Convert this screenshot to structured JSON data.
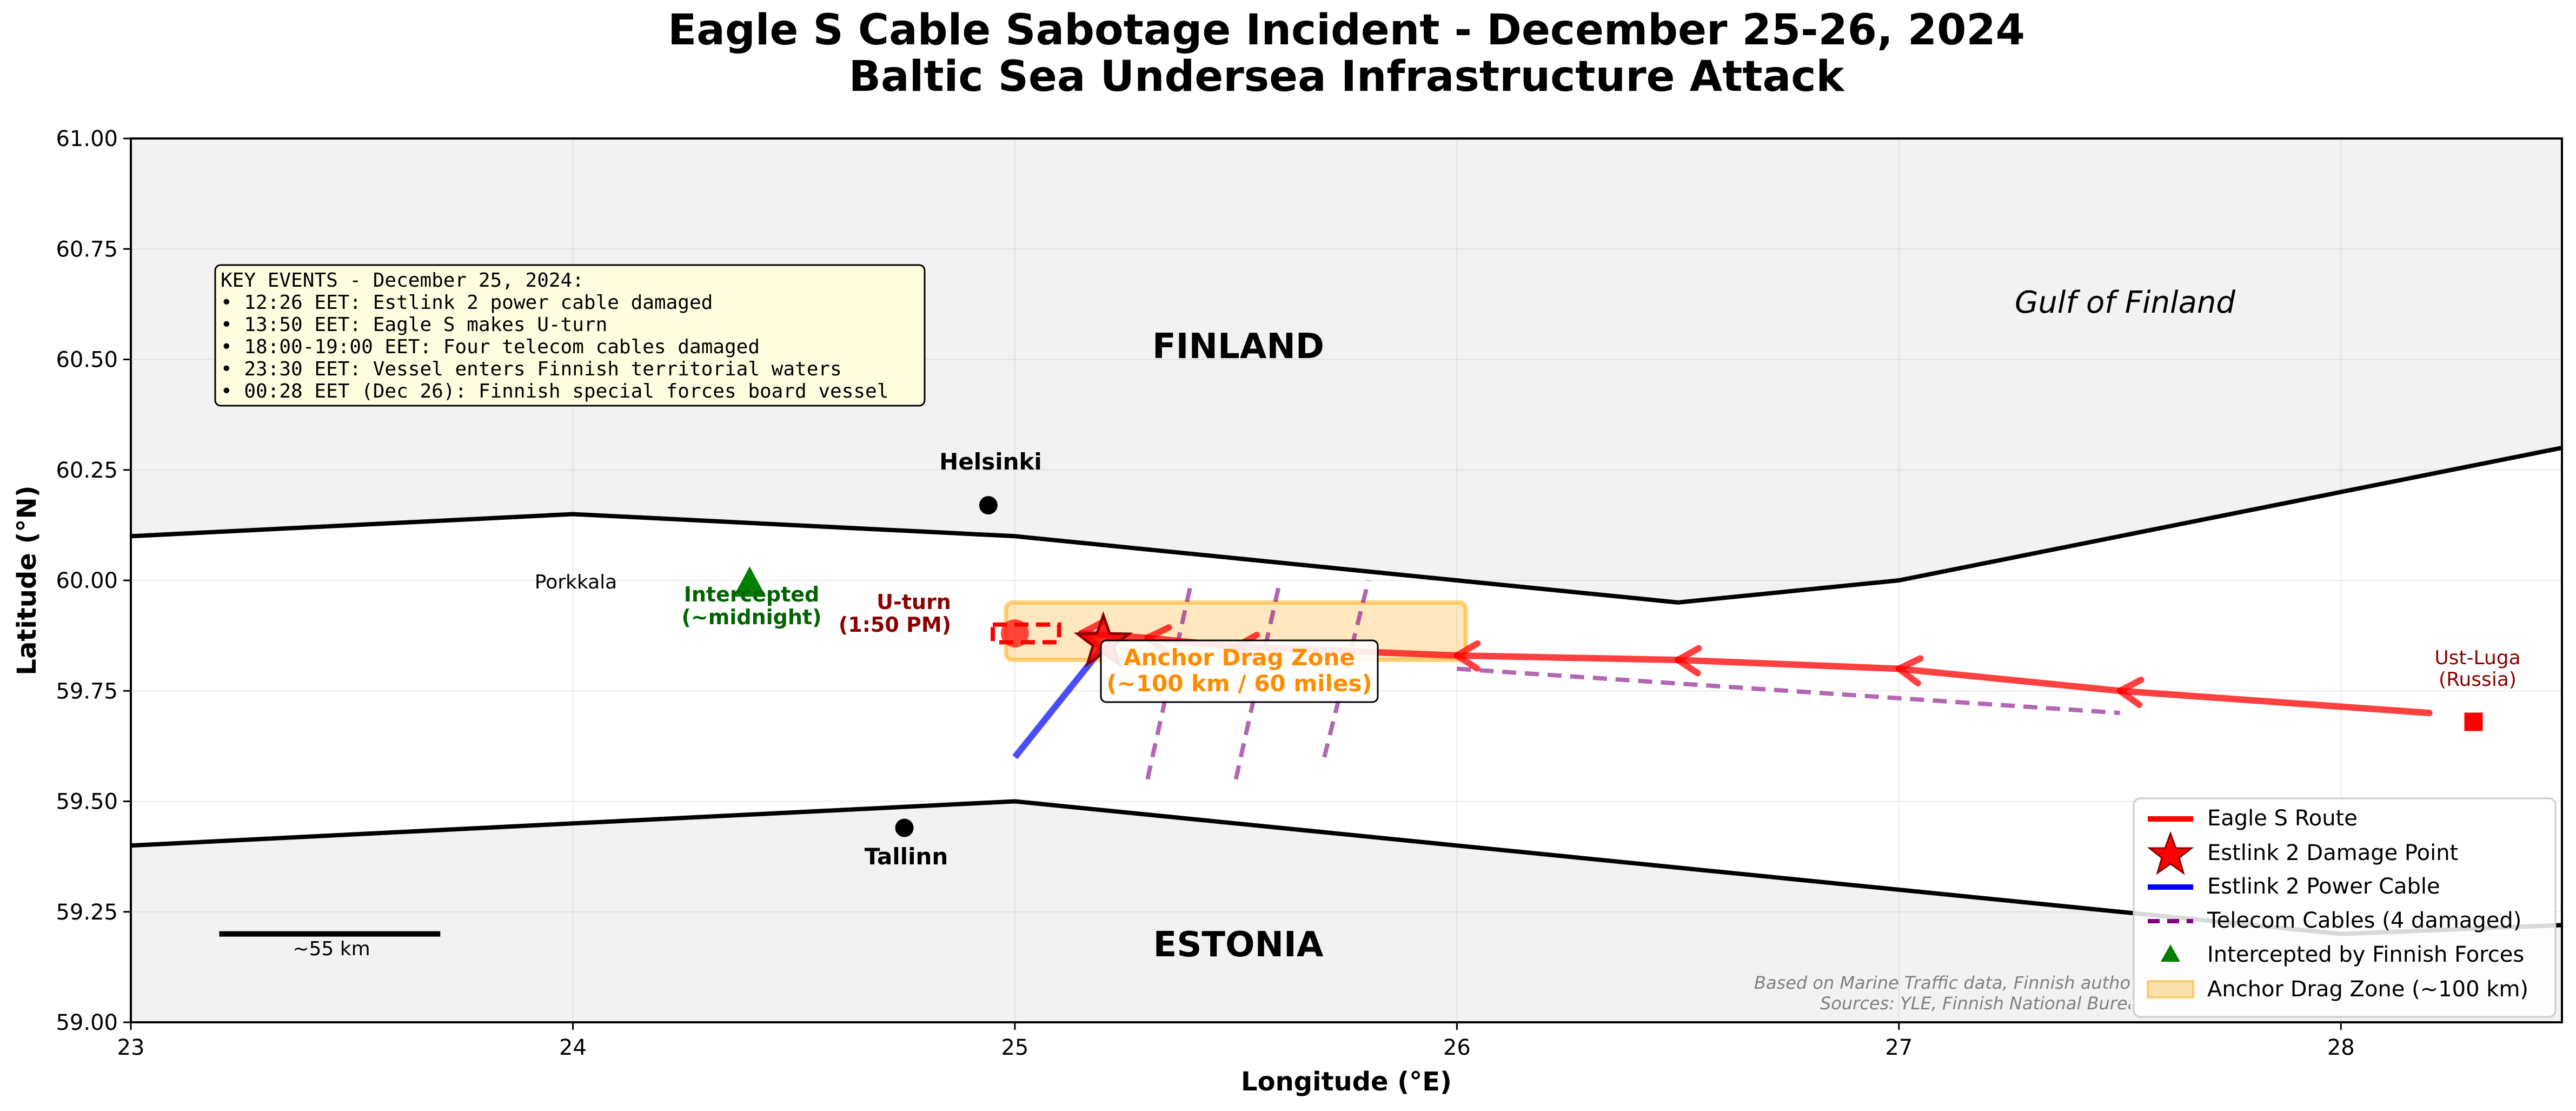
{
  "chart_data": {
    "type": "line",
    "title": "Eagle S Cable Sabotage Incident - December 25-26, 2024",
    "subtitle": "Baltic Sea Undersea Infrastructure Attack",
    "xlabel": "Longitude (°E)",
    "ylabel": "Latitude (°N)",
    "xlim": [
      23,
      28.5
    ],
    "ylim": [
      59.0,
      61.0
    ],
    "x_ticks": [
      "23",
      "24",
      "25",
      "26",
      "27",
      "28"
    ],
    "y_ticks": [
      "59.00",
      "59.25",
      "59.50",
      "59.75",
      "60.00",
      "60.25",
      "60.50",
      "60.75",
      "61.00"
    ],
    "grid": true,
    "legend_position": "lower-right",
    "colors": {
      "route": "#ff0000",
      "power_cable": "#0000ff",
      "telecom": "#800080",
      "intercept": "#006400",
      "drag_zone": "#ffa500",
      "land": "#f2f2f2",
      "damage_star": "#ff0000"
    },
    "coastlines": {
      "finland": [
        [
          23,
          60.1
        ],
        [
          24,
          60.15
        ],
        [
          25,
          60.1
        ],
        [
          26,
          60.0
        ],
        [
          26.5,
          59.95
        ],
        [
          27,
          60.0
        ],
        [
          28.5,
          60.3
        ]
      ],
      "estonia": [
        [
          23,
          59.4
        ],
        [
          24,
          59.45
        ],
        [
          25,
          59.5
        ],
        [
          26,
          59.4
        ],
        [
          27,
          59.3
        ],
        [
          28,
          59.2
        ],
        [
          28.5,
          59.22
        ]
      ]
    },
    "route_arrows": [
      [
        [
          28.2,
          59.7
        ],
        [
          27.5,
          59.75
        ]
      ],
      [
        [
          27.5,
          59.75
        ],
        [
          27.0,
          59.8
        ]
      ],
      [
        [
          27.0,
          59.8
        ],
        [
          26.5,
          59.82
        ]
      ],
      [
        [
          26.5,
          59.82
        ],
        [
          26.0,
          59.83
        ]
      ],
      [
        [
          26.0,
          59.83
        ],
        [
          25.5,
          59.85
        ]
      ],
      [
        [
          25.5,
          59.85
        ],
        [
          25.3,
          59.87
        ]
      ],
      [
        [
          25.3,
          59.87
        ],
        [
          25.15,
          59.88
        ]
      ]
    ],
    "power_cable": [
      [
        25.0,
        59.6
      ],
      [
        25.2,
        59.85
      ]
    ],
    "telecom_cables": [
      [
        [
          25.3,
          59.55
        ],
        [
          25.4,
          60.0
        ]
      ],
      [
        [
          25.5,
          59.55
        ],
        [
          25.6,
          60.0
        ]
      ],
      [
        [
          25.7,
          59.6
        ],
        [
          25.8,
          60.0
        ]
      ],
      [
        [
          26.0,
          59.8
        ],
        [
          27.5,
          59.7
        ]
      ]
    ],
    "drag_zone": {
      "x": [
        24.98,
        26.02
      ],
      "y": [
        59.82,
        59.95
      ]
    },
    "uturn_box": {
      "x": [
        24.95,
        25.1
      ],
      "y": [
        59.86,
        59.9
      ]
    },
    "uturn_point": [
      25.0,
      59.88
    ],
    "damage_point": [
      25.2,
      59.86
    ],
    "intercept_point": [
      24.4,
      59.99
    ],
    "cities": [
      {
        "name": "Helsinki",
        "lon": 24.94,
        "lat": 60.17
      },
      {
        "name": "Tallinn",
        "lon": 24.75,
        "lat": 59.44
      }
    ],
    "ust_luga": {
      "lon": 28.3,
      "lat": 59.68,
      "label_line1": "Ust-Luga",
      "label_line2": "(Russia)"
    },
    "scale_bar": {
      "x": [
        23.2,
        23.7
      ],
      "y": 59.2,
      "label": "~55 km"
    },
    "annotations": {
      "finland": "FINLAND",
      "estonia": "ESTONIA",
      "gulf": "Gulf of Finland",
      "porkkala": "Porkkala",
      "intercepted_line1": "Intercepted",
      "intercepted_line2": "(~midnight)",
      "uturn_line1": "U-turn",
      "uturn_line2": "(1:50 PM)",
      "drag_zone_line1": "Anchor Drag Zone",
      "drag_zone_line2": "(~100 km / 60 miles)"
    },
    "key_events": [
      "KEY EVENTS - December 25, 2024:",
      "• 12:26 EET: Estlink 2 power cable damaged",
      "• 13:50 EET: Eagle S makes U-turn",
      "• 18:00-19:00 EET: Four telecom cables damaged",
      "• 23:30 EET: Vessel enters Finnish territorial waters",
      "• 00:28 EET (Dec 26): Finnish special forces board vessel"
    ],
    "source_note": [
      "Based on Marine Traffic data, Finnish authorities reports",
      "Sources: YLE, Finnish National Bureau of Investigation"
    ],
    "legend": [
      {
        "key": "route",
        "label": "Eagle S Route"
      },
      {
        "key": "star",
        "label": "Estlink 2 Damage Point"
      },
      {
        "key": "power",
        "label": "Estlink 2 Power Cable"
      },
      {
        "key": "telecom",
        "label": "Telecom Cables (4 damaged)"
      },
      {
        "key": "intercept",
        "label": "Intercepted by Finnish Forces"
      },
      {
        "key": "zone",
        "label": "Anchor Drag Zone (~100 km)"
      }
    ]
  }
}
